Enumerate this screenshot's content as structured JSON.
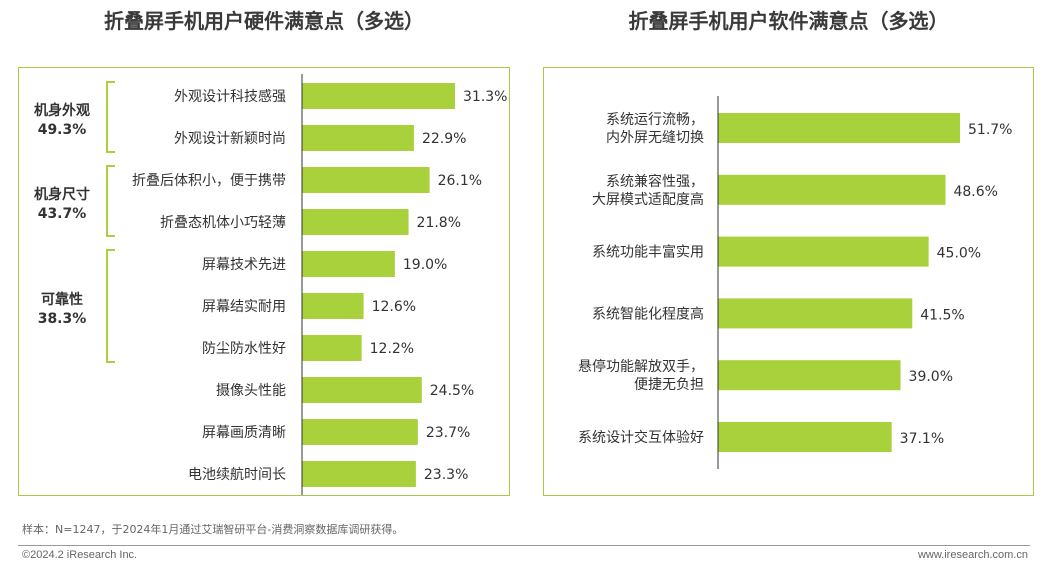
{
  "hardware_title": "折叠屏手机用户硬件满意点（多选）",
  "software_title": "折叠屏手机用户软件满意点（多选）",
  "note": "样本：N=1247，于2024年1月通过艾瑞智研平台-消费洞察数据库调研获得。",
  "copyright": "©2024.2 iResearch Inc.",
  "website": "www.iresearch.com.cn",
  "colors": {
    "bar": "#a8d13b",
    "border": "#a8c84a",
    "axis": "#333333"
  },
  "chart_data": [
    {
      "type": "bar",
      "orientation": "horizontal",
      "title": "折叠屏手机用户硬件满意点（多选）",
      "unit": "%",
      "xlim": [
        0,
        50
      ],
      "groups": [
        {
          "label": "机身外观",
          "value_label": "49.3%",
          "start": 0,
          "end": 1
        },
        {
          "label": "机身尺寸",
          "value_label": "43.7%",
          "start": 2,
          "end": 3
        },
        {
          "label": "可靠性",
          "value_label": "38.3%",
          "start": 4,
          "end": 6
        }
      ],
      "categories": [
        "外观设计科技感强",
        "外观设计新颖时尚",
        "折叠后体积小，便于携带",
        "折叠态机体小巧轻薄",
        "屏幕技术先进",
        "屏幕结实耐用",
        "防尘防水性好",
        "摄像头性能",
        "屏幕画质清晰",
        "电池续航时间长"
      ],
      "values": [
        31.3,
        22.9,
        26.1,
        21.8,
        19.0,
        12.6,
        12.2,
        24.5,
        23.7,
        23.3
      ],
      "value_labels": [
        "31.3%",
        "22.9%",
        "26.1%",
        "21.8%",
        "19.0%",
        "12.6%",
        "12.2%",
        "24.5%",
        "23.7%",
        "23.3%"
      ]
    },
    {
      "type": "bar",
      "orientation": "horizontal",
      "title": "折叠屏手机用户软件满意点（多选）",
      "unit": "%",
      "xlim": [
        0,
        70
      ],
      "categories": [
        [
          "系统运行流畅，",
          "内外屏无缝切换"
        ],
        [
          "系统兼容性强，",
          "大屏模式适配度高"
        ],
        [
          "系统功能丰富实用"
        ],
        [
          "系统智能化程度高"
        ],
        [
          "悬停功能解放双手，",
          "便捷无负担"
        ],
        [
          "系统设计交互体验好"
        ]
      ],
      "values": [
        51.7,
        48.6,
        45.0,
        41.5,
        39.0,
        37.1
      ],
      "value_labels": [
        "51.7%",
        "48.6%",
        "45.0%",
        "41.5%",
        "39.0%",
        "37.1%"
      ]
    }
  ]
}
